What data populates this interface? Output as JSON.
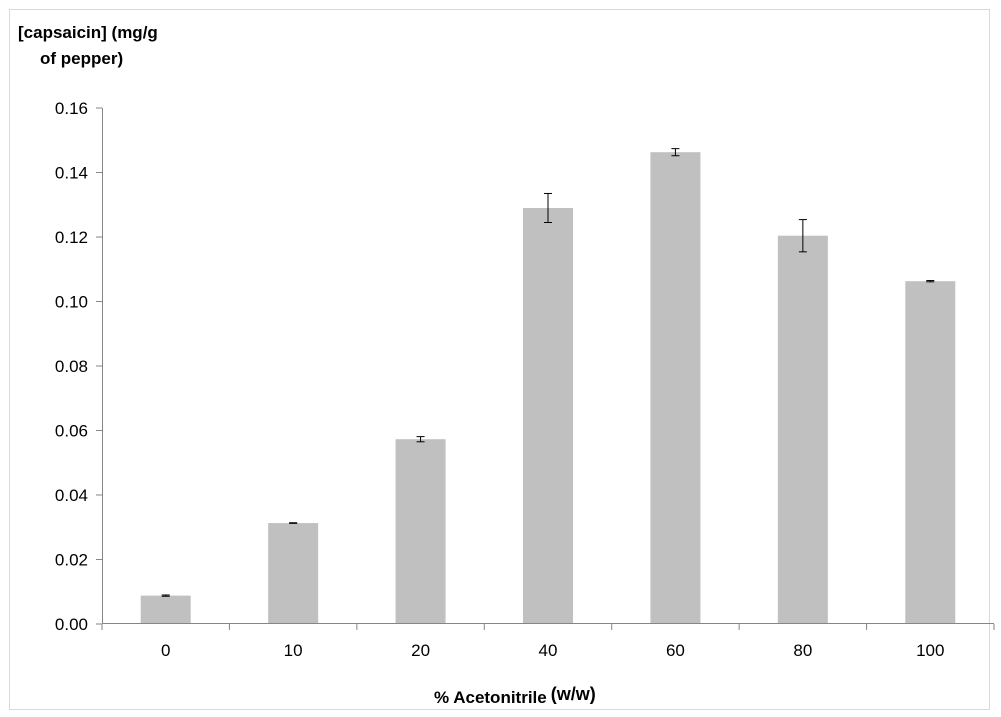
{
  "chart_data": {
    "type": "bar",
    "ylabel_line1": "[capsaicin] (mg/g",
    "ylabel_line2": "of pepper)",
    "xlabel": "% Acetonitrile",
    "xlabel_unit": "(w/w)",
    "categories": [
      "0",
      "10",
      "20",
      "40",
      "60",
      "80",
      "100"
    ],
    "values": [
      0.0088,
      0.0313,
      0.0573,
      0.129,
      0.1463,
      0.1204,
      0.1063
    ],
    "errors": [
      0.0002,
      0.0001,
      0.0008,
      0.0045,
      0.0011,
      0.005,
      0.0002
    ],
    "ylim": [
      0,
      0.16
    ],
    "yticks": [
      "0.00",
      "0.02",
      "0.04",
      "0.06",
      "0.08",
      "0.10",
      "0.12",
      "0.14",
      "0.16"
    ],
    "bar_color": "#c0c0c0",
    "grid": false,
    "legend": "none"
  }
}
